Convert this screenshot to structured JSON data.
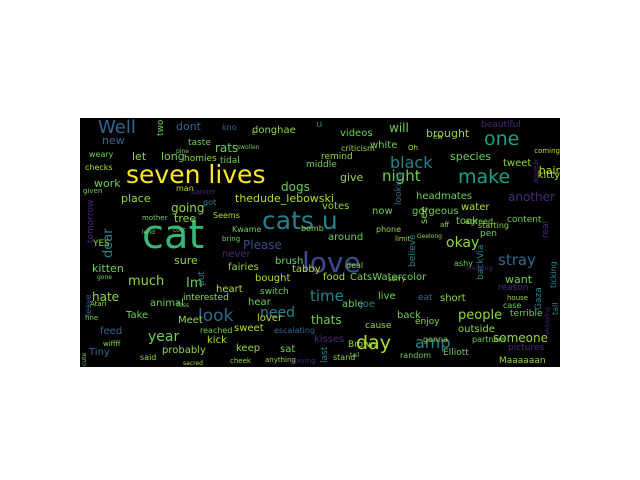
{
  "words": [
    {
      "text": "cat",
      "color": "#35b779"
    },
    {
      "text": "seven lives",
      "color": "#fde725"
    },
    {
      "text": "cats u",
      "color": "#26828e"
    },
    {
      "text": "love",
      "color": "#3e4a89"
    },
    {
      "text": "Well",
      "color": "#31688e"
    },
    {
      "text": "one",
      "color": "#1f9e89"
    },
    {
      "text": "make",
      "color": "#1f9e89"
    },
    {
      "text": "black",
      "color": "#26828e"
    },
    {
      "text": "night",
      "color": "#6ece58"
    },
    {
      "text": "day",
      "color": "#b5de2b"
    },
    {
      "text": "amp",
      "color": "#26828e"
    },
    {
      "text": "look",
      "color": "#31688e"
    },
    {
      "text": "time",
      "color": "#26828e"
    },
    {
      "text": "year",
      "color": "#6ece58"
    },
    {
      "text": "stray",
      "color": "#31688e"
    },
    {
      "text": "okay",
      "color": "#90d743"
    },
    {
      "text": "need",
      "color": "#26828e"
    },
    {
      "text": "much",
      "color": "#90d743"
    },
    {
      "text": "Im",
      "color": "#6ece58"
    },
    {
      "text": "dogs",
      "color": "#6ece58"
    },
    {
      "text": "rats",
      "color": "#6ece58"
    },
    {
      "text": "going",
      "color": "#90d743"
    },
    {
      "text": "Please",
      "color": "#3e4a89"
    },
    {
      "text": "hate",
      "color": "#90d743"
    },
    {
      "text": "people",
      "color": "#90d743"
    },
    {
      "text": "someone",
      "color": "#90d743"
    },
    {
      "text": "thats",
      "color": "#6ece58"
    },
    {
      "text": "want",
      "color": "#6ece58"
    },
    {
      "text": "dear",
      "color": "#26828e"
    },
    {
      "text": "another",
      "color": "#482878"
    },
    {
      "text": "will",
      "color": "#6ece58"
    },
    {
      "text": "dont",
      "color": "#31688e"
    },
    {
      "text": "u",
      "color": "#26828e"
    },
    {
      "text": "give",
      "color": "#90d743"
    },
    {
      "text": "brought",
      "color": "#90d743"
    },
    {
      "text": "beautiful",
      "color": "#482878"
    },
    {
      "text": "hair",
      "color": "#b5de2b"
    },
    {
      "text": "species",
      "color": "#6ece58"
    },
    {
      "text": "tweet",
      "color": "#90d743"
    },
    {
      "text": "kitty",
      "color": "#b5de2b"
    },
    {
      "text": "new",
      "color": "#31688e"
    },
    {
      "text": "let",
      "color": "#90d743"
    },
    {
      "text": "long",
      "color": "#6ece58"
    },
    {
      "text": "work",
      "color": "#6ece58"
    },
    {
      "text": "place",
      "color": "#90d743"
    },
    {
      "text": "tree",
      "color": "#90d743"
    },
    {
      "text": "kitten",
      "color": "#6ece58"
    },
    {
      "text": "sure",
      "color": "#90d743"
    },
    {
      "text": "Take",
      "color": "#6ece58"
    },
    {
      "text": "Meet",
      "color": "#90d743"
    },
    {
      "text": "feed",
      "color": "#31688e"
    },
    {
      "text": "Tiny",
      "color": "#31688e"
    },
    {
      "text": "probably",
      "color": "#90d743"
    },
    {
      "text": "animal",
      "color": "#6ece58"
    },
    {
      "text": "said",
      "color": "#90d743"
    },
    {
      "text": "kick",
      "color": "#b5de2b"
    },
    {
      "text": "heart",
      "color": "#b5de2b"
    },
    {
      "text": "sweet",
      "color": "#b5de2b"
    },
    {
      "text": "keep",
      "color": "#90d743"
    },
    {
      "text": "sat",
      "color": "#6ece58"
    },
    {
      "text": "lover",
      "color": "#b5de2b"
    },
    {
      "text": "bought",
      "color": "#b5de2b"
    },
    {
      "text": "hear",
      "color": "#6ece58"
    },
    {
      "text": "brush",
      "color": "#6ece58"
    },
    {
      "text": "tabby",
      "color": "#b5de2b"
    },
    {
      "text": "fairies",
      "color": "#90d743"
    },
    {
      "text": "never",
      "color": "#482878"
    },
    {
      "text": "food",
      "color": "#b5de2b"
    },
    {
      "text": "able",
      "color": "#6ece58"
    },
    {
      "text": "around",
      "color": "#6ece58"
    },
    {
      "text": "votes",
      "color": "#90d743"
    },
    {
      "text": "thedude_lebowski",
      "color": "#b5de2b"
    },
    {
      "text": "middle",
      "color": "#6ece58"
    },
    {
      "text": "videos",
      "color": "#6ece58"
    },
    {
      "text": "remind",
      "color": "#90d743"
    },
    {
      "text": "white",
      "color": "#6ece58"
    },
    {
      "text": "looking",
      "color": "#31688e"
    },
    {
      "text": "headmates",
      "color": "#6ece58"
    },
    {
      "text": "gorgeous",
      "color": "#6ece58"
    },
    {
      "text": "see",
      "color": "#90d743"
    },
    {
      "text": "took",
      "color": "#6ece58"
    },
    {
      "text": "now",
      "color": "#6ece58"
    },
    {
      "text": "water",
      "color": "#b5de2b"
    },
    {
      "text": "content",
      "color": "#6ece58"
    },
    {
      "text": "real",
      "color": "#482878"
    },
    {
      "text": "reason",
      "color": "#482878"
    },
    {
      "text": "CatsWatercolor",
      "color": "#6ece58"
    },
    {
      "text": "live",
      "color": "#6ece58"
    },
    {
      "text": "back",
      "color": "#6ece58"
    },
    {
      "text": "cause",
      "color": "#90d743"
    },
    {
      "text": "enjoy",
      "color": "#90d743"
    },
    {
      "text": "eat",
      "color": "#31688e"
    },
    {
      "text": "short",
      "color": "#90d743"
    },
    {
      "text": "joe",
      "color": "#26828e"
    },
    {
      "text": "Brown",
      "color": "#90d743"
    },
    {
      "text": "kisses",
      "color": "#482878"
    },
    {
      "text": "outside",
      "color": "#90d743"
    },
    {
      "text": "pictures",
      "color": "#482878"
    },
    {
      "text": "Elliott",
      "color": "#6ece58"
    },
    {
      "text": "Maaaaaan",
      "color": "#90d743"
    },
    {
      "text": "case",
      "color": "#6ece58"
    },
    {
      "text": "terrible",
      "color": "#6ece58"
    },
    {
      "text": "pen",
      "color": "#6ece58"
    },
    {
      "text": "starting",
      "color": "#90d743"
    },
    {
      "text": "agreed",
      "color": "#90d743"
    },
    {
      "text": "donghae",
      "color": "#90d743"
    },
    {
      "text": "kno",
      "color": "#31688e"
    },
    {
      "text": "taste",
      "color": "#6ece58"
    },
    {
      "text": "tidal",
      "color": "#6ece58"
    },
    {
      "text": "homies",
      "color": "#90d743"
    },
    {
      "text": "two",
      "color": "#6ece58"
    },
    {
      "text": "tomorrow",
      "color": "#482878"
    },
    {
      "text": "YES",
      "color": "#90d743"
    },
    {
      "text": "Seems",
      "color": "#b5de2b"
    },
    {
      "text": "Kwame",
      "color": "#6ece58"
    },
    {
      "text": "gonna",
      "color": "#90d743"
    },
    {
      "text": "random",
      "color": "#6ece58"
    },
    {
      "text": "stand",
      "color": "#90d743"
    },
    {
      "text": "partners",
      "color": "#6ece58"
    },
    {
      "text": "ashy",
      "color": "#6ece58"
    },
    {
      "text": "bomb",
      "color": "#90d743"
    },
    {
      "text": "phone",
      "color": "#90d743"
    },
    {
      "text": "deal",
      "color": "#90d743"
    },
    {
      "text": "switch",
      "color": "#6ece58"
    },
    {
      "text": "interested",
      "color": "#90d743"
    },
    {
      "text": "reached",
      "color": "#6ece58"
    },
    {
      "text": "escalating",
      "color": "#31688e"
    },
    {
      "text": "criticism",
      "color": "#90d743"
    },
    {
      "text": "coming",
      "color": "#b5de2b"
    },
    {
      "text": "appear",
      "color": "#482878"
    },
    {
      "text": "backVia",
      "color": "#26828e"
    },
    {
      "text": "believe",
      "color": "#26828e"
    },
    {
      "text": "Gaza",
      "color": "#26828e"
    },
    {
      "text": "ticking",
      "color": "#26828e"
    },
    {
      "text": "wiffff",
      "color": "#90d743"
    },
    {
      "text": "Atari",
      "color": "#90d743"
    },
    {
      "text": "sorry",
      "color": "#90d743"
    },
    {
      "text": "house",
      "color": "#90d743"
    },
    {
      "text": "aff",
      "color": "#90d743"
    },
    {
      "text": "limit",
      "color": "#90d743"
    },
    {
      "text": "ew",
      "color": "#90d743"
    },
    {
      "text": "Oh",
      "color": "#b5de2b"
    },
    {
      "text": "banner",
      "color": "#482878"
    },
    {
      "text": "cheek",
      "color": "#90d743"
    },
    {
      "text": "weary",
      "color": "#6ece58"
    },
    {
      "text": "checks",
      "color": "#b5de2b"
    },
    {
      "text": "given",
      "color": "#6ece58"
    },
    {
      "text": "fine",
      "color": "#6ece58"
    },
    {
      "text": "man",
      "color": "#b5de2b"
    },
    {
      "text": "mother",
      "color": "#6ece58"
    },
    {
      "text": "lend",
      "color": "#6ece58"
    },
    {
      "text": "bring",
      "color": "#6ece58"
    },
    {
      "text": "last",
      "color": "#26828e"
    },
    {
      "text": "put",
      "color": "#26828e"
    },
    {
      "text": "got",
      "color": "#26828e"
    },
    {
      "text": "leave",
      "color": "#31688e"
    },
    {
      "text": "tall",
      "color": "#26828e"
    },
    {
      "text": "c",
      "color": "#6ece58"
    },
    {
      "text": "pine",
      "color": "#6ece58"
    },
    {
      "text": "swollen",
      "color": "#6ece58"
    },
    {
      "text": "anything",
      "color": "#90d743"
    },
    {
      "text": "playing",
      "color": "#482878"
    },
    {
      "text": "Geelong",
      "color": "#90d743"
    },
    {
      "text": "sacred",
      "color": "#b5de2b"
    },
    {
      "text": "gone",
      "color": "#6ece58"
    },
    {
      "text": "foss",
      "color": "#6ece58"
    },
    {
      "text": "cost",
      "color": "#6ece58"
    },
    {
      "text": "cute",
      "color": "#6ece58"
    },
    {
      "text": "annoying",
      "color": "#482878"
    },
    {
      "text": "breaking",
      "color": "#482878"
    },
    {
      "text": "tail",
      "color": "#6ece58"
    }
  ]
}
